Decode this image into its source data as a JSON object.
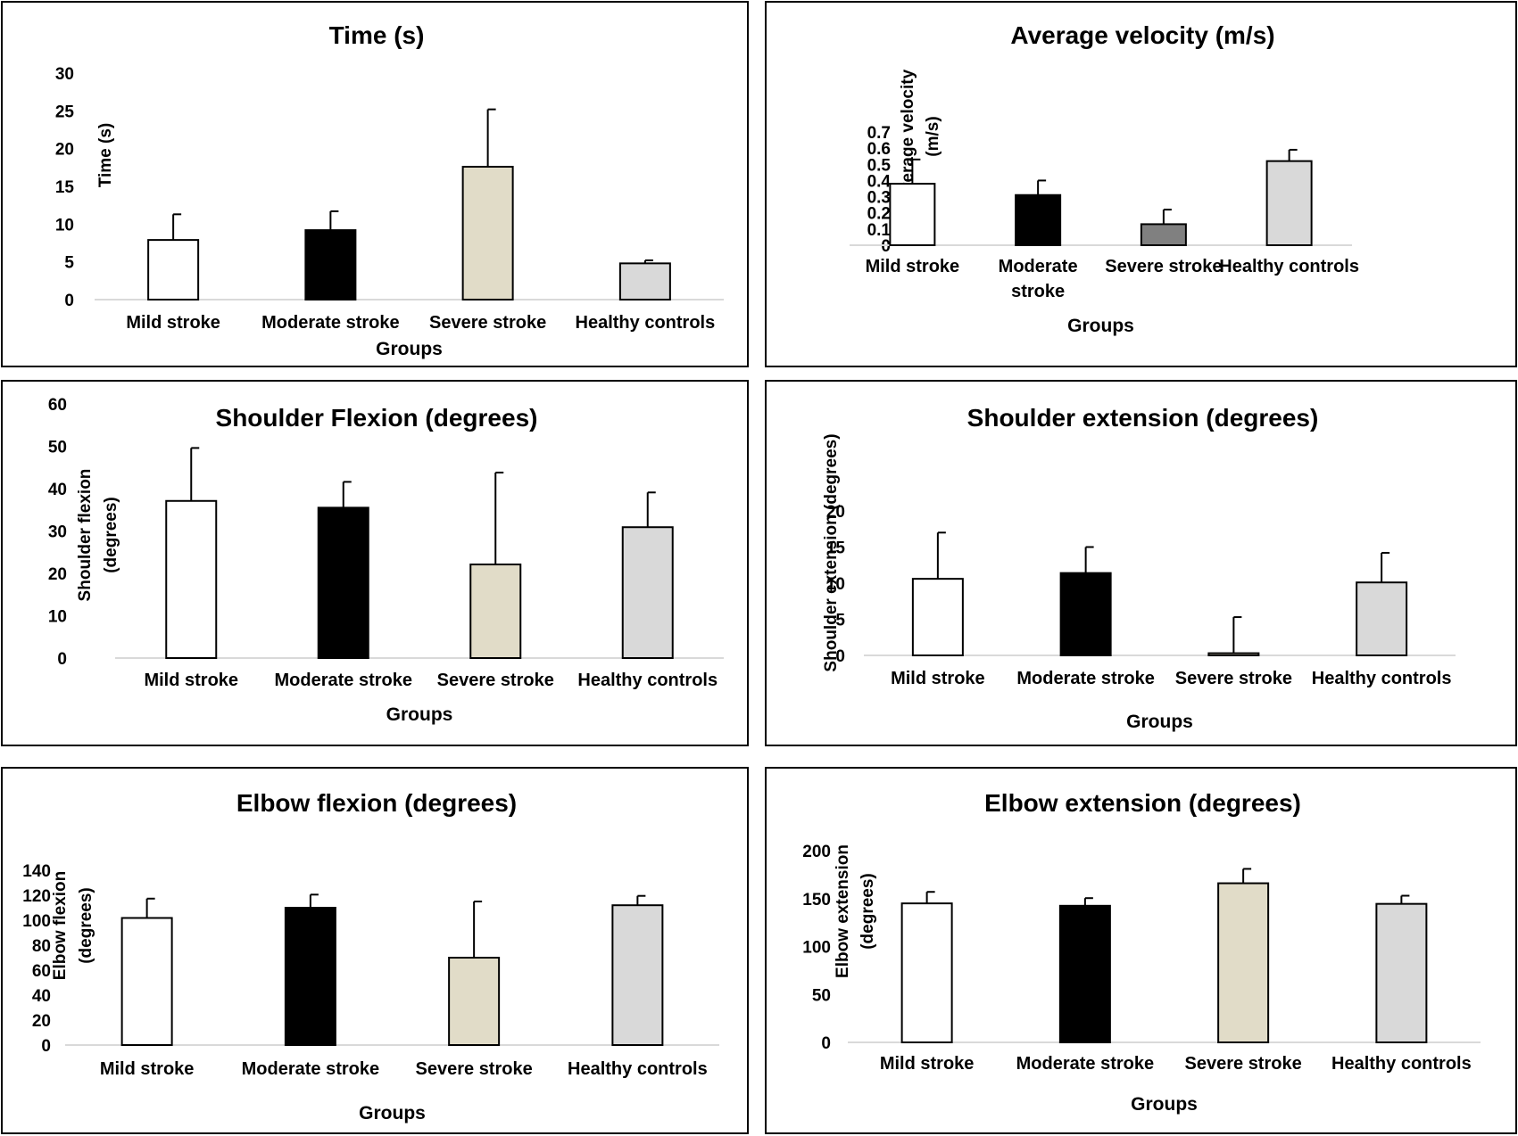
{
  "groups_label": "Groups",
  "colors": {
    "mild": "#ffffff",
    "moderate": "#000000",
    "severe": "#e1dcc8",
    "healthy": "#d9d9d9",
    "severe_velocity": "#808080",
    "axis": "#d9d9d9",
    "border": "#000000"
  },
  "chart_data": [
    {
      "type": "bar",
      "title": "Time (s)",
      "ylabel": [
        "Time (s)"
      ],
      "xlabel": "Groups",
      "categories": [
        [
          "Mild stroke"
        ],
        [
          "Moderate stroke"
        ],
        [
          "Severe stroke"
        ],
        [
          "Healthy controls"
        ]
      ],
      "values": [
        7.9,
        9.2,
        17.6,
        4.8
      ],
      "error": [
        3.4,
        2.5,
        7.6,
        0.4
      ],
      "ylim": [
        0,
        30
      ],
      "yticks": [
        "0",
        "5",
        "10",
        "15",
        "20",
        "25",
        "30"
      ],
      "bar_colors": [
        "#ffffff",
        "#000000",
        "#e1dcc8",
        "#d9d9d9"
      ],
      "grid": false
    },
    {
      "type": "bar",
      "title": "Average velocity (m/s)",
      "ylabel": [
        "Average velocity",
        "(m/s)"
      ],
      "xlabel": "Groups",
      "categories": [
        [
          "Mild stroke"
        ],
        [
          "Moderate",
          "stroke"
        ],
        [
          "Severe stroke"
        ],
        [
          "Healthy controls"
        ]
      ],
      "values": [
        0.38,
        0.31,
        0.13,
        0.52
      ],
      "error": [
        0.15,
        0.09,
        0.09,
        0.07
      ],
      "ylim": [
        0,
        0.7
      ],
      "yticks": [
        "0",
        "0.1",
        "0.2",
        "0.3",
        "0.4",
        "0.5",
        "0.6",
        "0.7"
      ],
      "bar_colors": [
        "#ffffff",
        "#000000",
        "#808080",
        "#d9d9d9"
      ],
      "grid": false
    },
    {
      "type": "bar",
      "title": "Shoulder Flexion (degrees)",
      "ylabel": [
        "Shoulder flexion",
        "(degrees)"
      ],
      "xlabel": "Groups",
      "categories": [
        [
          "Mild stroke"
        ],
        [
          "Moderate stroke"
        ],
        [
          "Severe stroke"
        ],
        [
          "Healthy controls"
        ]
      ],
      "values": [
        37.1,
        35.5,
        22.1,
        30.9
      ],
      "error": [
        12.5,
        6.1,
        21.7,
        8.2
      ],
      "ylim": [
        0,
        60
      ],
      "yticks": [
        "0",
        "10",
        "20",
        "30",
        "40",
        "50",
        "60"
      ],
      "bar_colors": [
        "#ffffff",
        "#000000",
        "#e1dcc8",
        "#d9d9d9"
      ],
      "grid": false
    },
    {
      "type": "bar",
      "title": "Shoulder extension (degrees)",
      "ylabel": [
        "Shoulder extension (degrees)"
      ],
      "xlabel": "Groups",
      "categories": [
        [
          "Mild stroke"
        ],
        [
          "Moderate stroke"
        ],
        [
          "Severe stroke"
        ],
        [
          "Healthy controls"
        ]
      ],
      "values": [
        10.6,
        11.4,
        0.3,
        10.1
      ],
      "error": [
        6.4,
        3.6,
        5.0,
        4.1
      ],
      "ylim": [
        0,
        20
      ],
      "yticks": [
        "0",
        "5",
        "10",
        "15",
        "20"
      ],
      "bar_colors": [
        "#ffffff",
        "#000000",
        "#e1dcc8",
        "#d9d9d9"
      ],
      "grid": false
    },
    {
      "type": "bar",
      "title": "Elbow flexion (degrees)",
      "ylabel": [
        "Elbow flexion",
        "(degrees)"
      ],
      "xlabel": "Groups",
      "categories": [
        [
          "Mild stroke"
        ],
        [
          "Moderate stroke"
        ],
        [
          "Severe stroke"
        ],
        [
          "Healthy controls"
        ]
      ],
      "values": [
        101.8,
        110.0,
        70.0,
        112.0
      ],
      "error": [
        15.5,
        10.5,
        45.0,
        7.5
      ],
      "ylim": [
        0,
        140
      ],
      "yticks": [
        "0",
        "20",
        "40",
        "60",
        "80",
        "100",
        "120",
        "140"
      ],
      "bar_colors": [
        "#ffffff",
        "#000000",
        "#e1dcc8",
        "#d9d9d9"
      ],
      "grid": false
    },
    {
      "type": "bar",
      "title": "Elbow extension (degrees)",
      "ylabel": [
        "Elbow extension",
        "(degrees)"
      ],
      "xlabel": "Groups",
      "categories": [
        [
          "Mild stroke"
        ],
        [
          "Moderate stroke"
        ],
        [
          "Severe stroke"
        ],
        [
          "Healthy controls"
        ]
      ],
      "values": [
        145.0,
        142.5,
        166.0,
        144.5
      ],
      "error": [
        12.0,
        8.0,
        15.0,
        8.5
      ],
      "ylim": [
        0,
        200
      ],
      "yticks": [
        "0",
        "50",
        "100",
        "150",
        "200"
      ],
      "bar_colors": [
        "#ffffff",
        "#000000",
        "#e1dcc8",
        "#d9d9d9"
      ],
      "grid": false
    }
  ]
}
